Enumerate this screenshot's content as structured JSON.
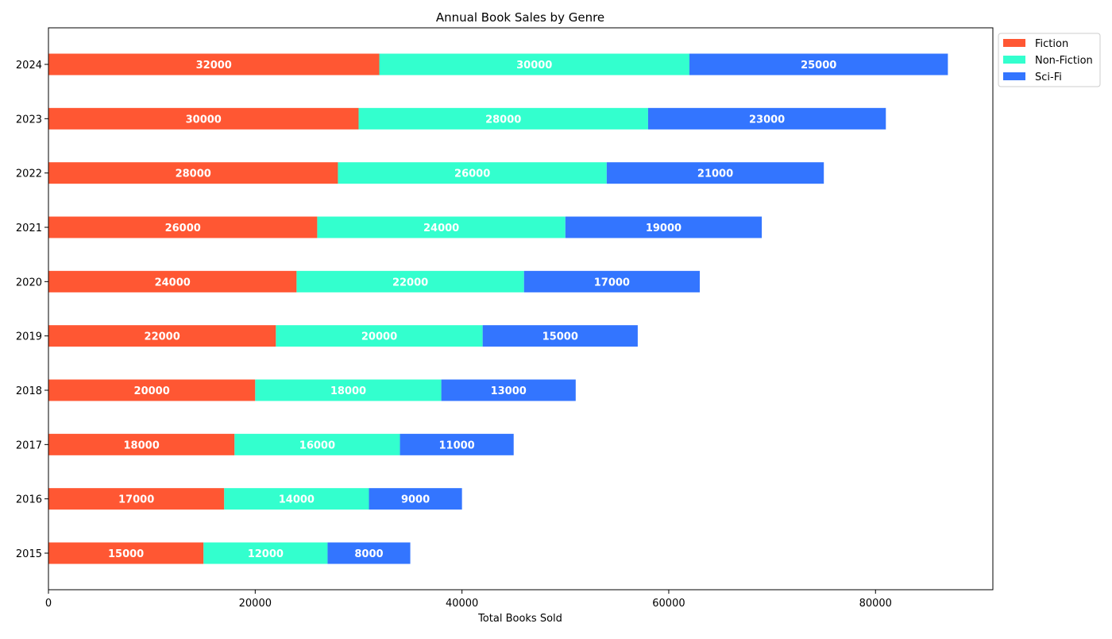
{
  "chart_data": {
    "type": "bar",
    "orientation": "horizontal",
    "stacked": true,
    "title": "Annual Book Sales by Genre",
    "xlabel": "Total Books Sold",
    "ylabel": "",
    "xlim": [
      0,
      91350
    ],
    "xticks": [
      0,
      20000,
      40000,
      60000,
      80000
    ],
    "xtick_labels": [
      "0",
      "20000",
      "40000",
      "60000",
      "80000"
    ],
    "categories": [
      "2015",
      "2016",
      "2017",
      "2018",
      "2019",
      "2020",
      "2021",
      "2022",
      "2023",
      "2024"
    ],
    "series": [
      {
        "name": "Fiction",
        "color": "#ff5733",
        "values": [
          15000,
          17000,
          18000,
          20000,
          22000,
          24000,
          26000,
          28000,
          30000,
          32000
        ]
      },
      {
        "name": "Non-Fiction",
        "color": "#33ffce",
        "values": [
          12000,
          14000,
          16000,
          18000,
          20000,
          22000,
          24000,
          26000,
          28000,
          30000
        ]
      },
      {
        "name": "Sci-Fi",
        "color": "#3375ff",
        "values": [
          8000,
          9000,
          11000,
          13000,
          15000,
          17000,
          19000,
          21000,
          23000,
          25000
        ]
      }
    ],
    "data_labels": true,
    "grid": false,
    "legend_position": "upper right outside"
  }
}
